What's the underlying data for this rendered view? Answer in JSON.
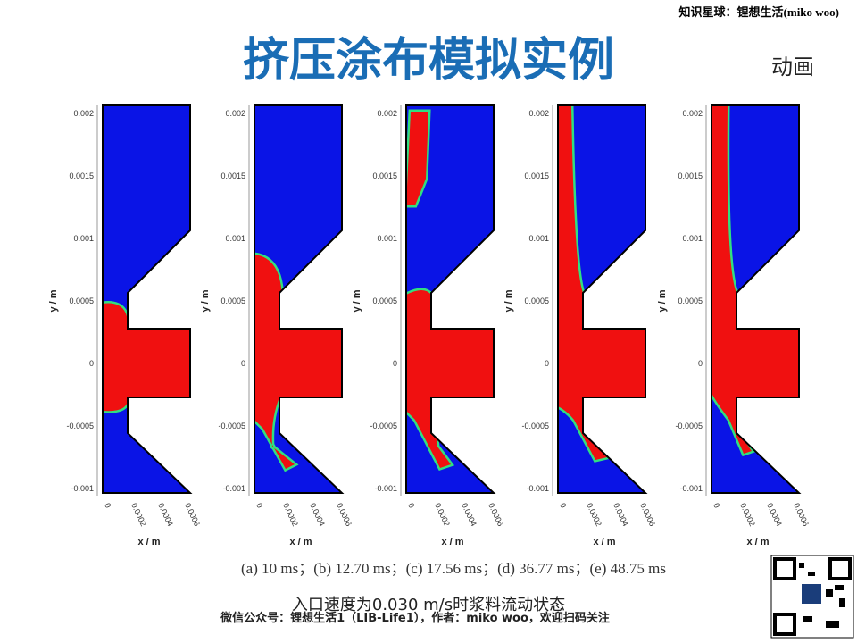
{
  "header": {
    "watermark": "知识星球：锂想生活(miko woo)",
    "title": "挤压涂布模拟实例",
    "tag": "动画"
  },
  "panels": {
    "y_label": "y / m",
    "x_label": "x / m",
    "y_ticks": [
      "0.002",
      "0.0015",
      "0.001",
      "0.0005",
      "0",
      "-0.0005",
      "-0.001"
    ],
    "x_ticks": [
      "0",
      "0.0002",
      "0.0004",
      "0.0006"
    ]
  },
  "caption": "(a) 10 ms；(b) 12.70 ms；(c) 17.56 ms；(d) 36.77 ms；(e) 48.75 ms",
  "subcaption": "入口速度为0.030 m/s时浆料流动状态",
  "footer": "微信公众号：锂想生活1（LIB-Life1），作者：miko woo，欢迎扫码关注"
}
